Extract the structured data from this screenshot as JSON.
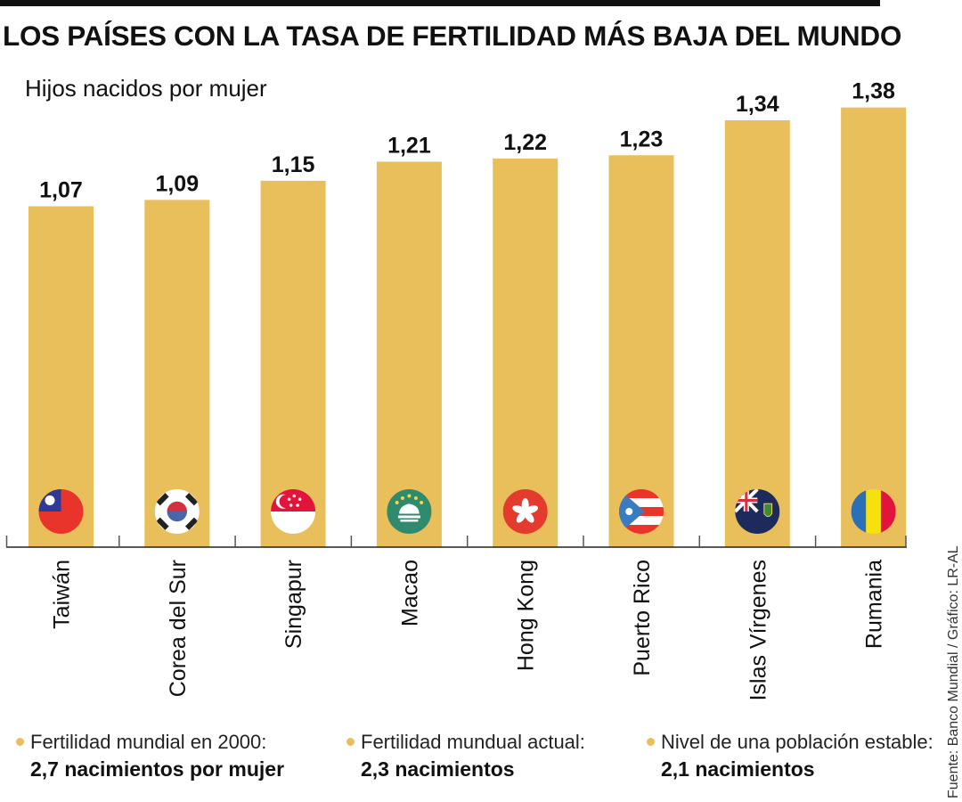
{
  "chart_data": {
    "type": "bar",
    "title": "LOS PAÍSES CON LA TASA DE FERTILIDAD MÁS BAJA DEL MUNDO",
    "subtitle": "Hijos nacidos por mujer",
    "xlabel": "",
    "ylabel": "Hijos nacidos por mujer",
    "categories": [
      "Taiwán",
      "Corea del Sur",
      "Singapur",
      "Macao",
      "Hong Kong",
      "Puerto Rico",
      "Islas Vírgenes",
      "Rumania"
    ],
    "values": [
      1.07,
      1.09,
      1.15,
      1.21,
      1.22,
      1.23,
      1.34,
      1.38
    ],
    "value_labels": [
      "1,07",
      "1,09",
      "1,15",
      "1,21",
      "1,22",
      "1,23",
      "1,34",
      "1,38"
    ],
    "flags": [
      "taiwan-flag-icon",
      "south-korea-flag-icon",
      "singapore-flag-icon",
      "macao-flag-icon",
      "hong-kong-flag-icon",
      "puerto-rico-flag-icon",
      "british-virgin-islands-flag-icon",
      "romania-flag-icon"
    ],
    "ylim": [
      0,
      1.38
    ],
    "grid": false,
    "bar_color": "#e8bf5a"
  },
  "legend_notes": [
    {
      "label": "Fertilidad mundial en 2000:",
      "value": "2,7 nacimientos por mujer"
    },
    {
      "label": "Fertilidad mundual actual:",
      "value": "2,3 nacimientos"
    },
    {
      "label": "Nivel de una población estable:",
      "value": "2,1 nacimientos"
    }
  ],
  "source": "Fuente: Banco Mundial / Gráfico: LR-AL",
  "colors": {
    "accent": "#e8bf5a",
    "text": "#111111"
  }
}
